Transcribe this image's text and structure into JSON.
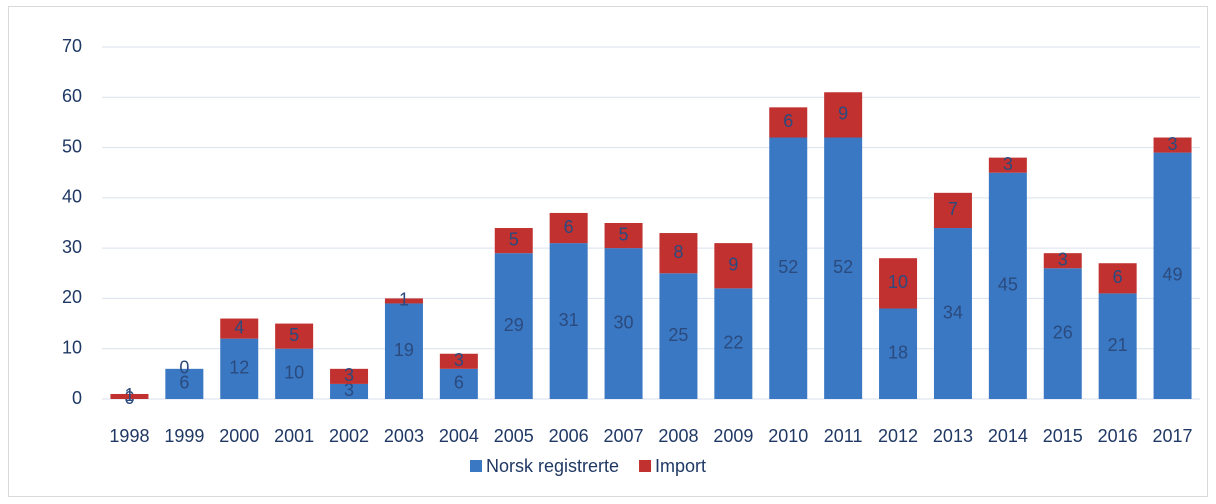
{
  "chart_data": {
    "type": "stacked_bar",
    "categories": [
      "1998",
      "1999",
      "2000",
      "2001",
      "2002",
      "2003",
      "2004",
      "2005",
      "2006",
      "2007",
      "2008",
      "2009",
      "2010",
      "2011",
      "2012",
      "2013",
      "2014",
      "2015",
      "2016",
      "2017"
    ],
    "series": [
      {
        "name": "Norsk registrerte",
        "color": "#3a78c3",
        "values": [
          0,
          6,
          12,
          10,
          3,
          19,
          6,
          29,
          31,
          30,
          25,
          22,
          52,
          52,
          18,
          34,
          45,
          26,
          21,
          49
        ]
      },
      {
        "name": "Import",
        "color": "#c0312f",
        "values": [
          1,
          0,
          4,
          5,
          3,
          1,
          3,
          5,
          6,
          5,
          8,
          9,
          6,
          9,
          10,
          7,
          3,
          3,
          6,
          3
        ]
      }
    ],
    "ylim": [
      0,
      70
    ],
    "yticks": [
      0,
      10,
      20,
      30,
      40,
      50,
      60,
      70
    ],
    "grid": true,
    "legend": "bottom"
  }
}
